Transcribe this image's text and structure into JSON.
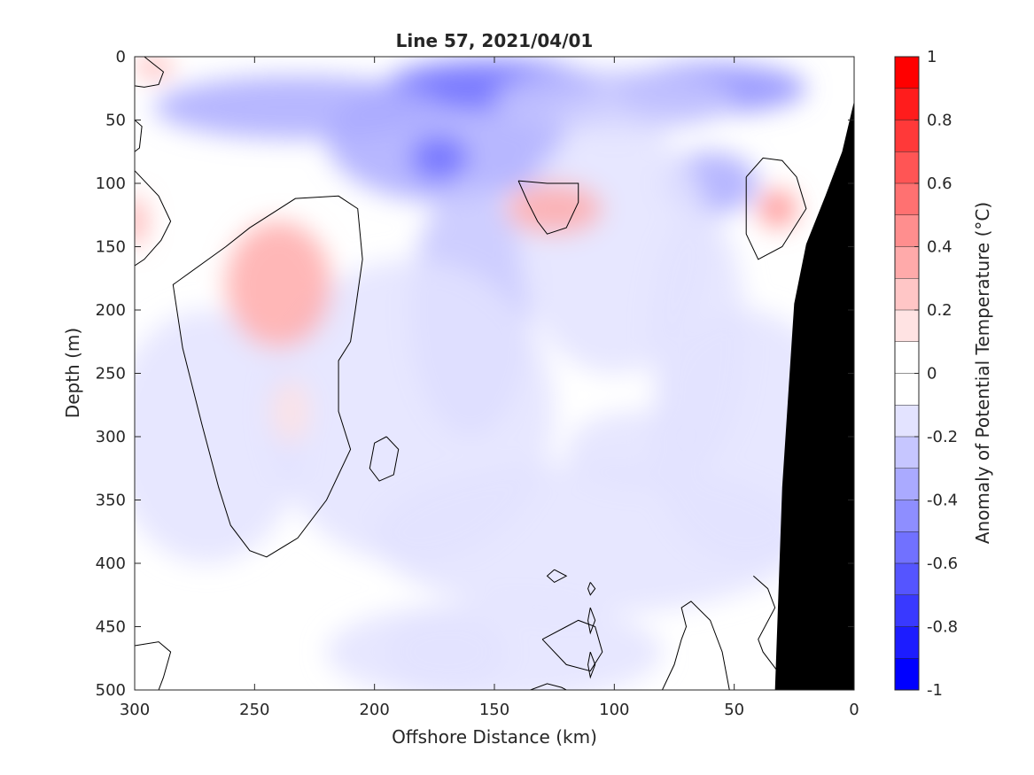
{
  "chart_data": {
    "type": "heatmap",
    "title": "Line 57, 2021/04/01",
    "xlabel": "Offshore Distance (km)",
    "ylabel": "Depth (m)",
    "colorbar_label": "Anomaly of Potential Temperature (°C)",
    "xlim": [
      300,
      0
    ],
    "ylim": [
      500,
      0
    ],
    "x_ticks": [
      "300",
      "250",
      "200",
      "150",
      "100",
      "50",
      "0"
    ],
    "y_ticks": [
      "0",
      "50",
      "100",
      "150",
      "200",
      "250",
      "300",
      "350",
      "400",
      "450",
      "500"
    ],
    "colorbar_ticks": [
      "1",
      "0.8",
      "0.6",
      "0.4",
      "0.2",
      "0",
      "-0.2",
      "-0.4",
      "-0.6",
      "-0.8",
      "-1"
    ],
    "clim": [
      -1,
      1
    ],
    "color_levels": [
      "#ff0000",
      "#ff1c1c",
      "#ff3939",
      "#ff5555",
      "#ff7171",
      "#ff8e8e",
      "#ffaaaa",
      "#ffc6c6",
      "#ffe3e3",
      "#ffffff",
      "#ffffff",
      "#e3e3ff",
      "#c6c6ff",
      "#aaaaff",
      "#8e8eff",
      "#7171ff",
      "#5555ff",
      "#3939ff",
      "#1c1cff",
      "#0000ff"
    ],
    "bathymetry_color": "#000000",
    "bathymetry": [
      {
        "x": 33,
        "depth": 500
      },
      {
        "x": 30,
        "depth": 340
      },
      {
        "x": 25,
        "depth": 195
      },
      {
        "x": 20,
        "depth": 148
      },
      {
        "x": 12,
        "depth": 110
      },
      {
        "x": 5,
        "depth": 75
      },
      {
        "x": 0,
        "depth": 35
      }
    ],
    "anomaly_features": [
      {
        "x": 170,
        "depth": 65,
        "rx": 50,
        "ry": 50,
        "value": -0.3
      },
      {
        "x": 150,
        "depth": 22,
        "rx": 45,
        "ry": 20,
        "value": -0.55
      },
      {
        "x": 173,
        "depth": 80,
        "rx": 12,
        "ry": 18,
        "value": -0.5
      },
      {
        "x": 232,
        "depth": 40,
        "rx": 60,
        "ry": 25,
        "value": -0.4
      },
      {
        "x": 60,
        "depth": 25,
        "rx": 40,
        "ry": 20,
        "value": -0.45
      },
      {
        "x": 100,
        "depth": 35,
        "rx": 50,
        "ry": 25,
        "value": -0.25
      },
      {
        "x": 60,
        "depth": 100,
        "rx": 20,
        "ry": 25,
        "value": -0.3
      },
      {
        "x": 160,
        "depth": 200,
        "rx": 25,
        "ry": 100,
        "value": -0.25
      },
      {
        "x": 100,
        "depth": 150,
        "rx": 40,
        "ry": 100,
        "value": -0.15
      },
      {
        "x": 65,
        "depth": 220,
        "rx": 20,
        "ry": 100,
        "value": -0.2
      },
      {
        "x": 185,
        "depth": 280,
        "rx": 60,
        "ry": 120,
        "value": -0.1
      },
      {
        "x": 110,
        "depth": 380,
        "rx": 90,
        "ry": 60,
        "value": -0.1
      },
      {
        "x": 150,
        "depth": 470,
        "rx": 70,
        "ry": 40,
        "value": -0.12
      },
      {
        "x": 170,
        "depth": 470,
        "rx": 25,
        "ry": 30,
        "value": -0.2
      },
      {
        "x": 45,
        "depth": 300,
        "rx": 40,
        "ry": 100,
        "value": -0.15
      },
      {
        "x": 90,
        "depth": 310,
        "rx": 30,
        "ry": 30,
        "value": -0.15
      },
      {
        "x": 270,
        "depth": 300,
        "rx": 40,
        "ry": 100,
        "value": -0.1
      },
      {
        "x": 240,
        "depth": 180,
        "rx": 22,
        "ry": 50,
        "value": 0.3
      },
      {
        "x": 235,
        "depth": 280,
        "rx": 8,
        "ry": 25,
        "value": 0.12
      },
      {
        "x": 32,
        "depth": 120,
        "rx": 8,
        "ry": 15,
        "value": 0.4
      },
      {
        "x": 292,
        "depth": 8,
        "rx": 8,
        "ry": 8,
        "value": 0.3
      },
      {
        "x": 300,
        "depth": 130,
        "rx": 5,
        "ry": 20,
        "value": 0.3
      },
      {
        "x": 125,
        "depth": 120,
        "rx": 20,
        "ry": 20,
        "value": 0.3
      }
    ],
    "zero_contours": [
      [
        [
          262,
          150
        ],
        [
          252,
          135
        ],
        [
          233,
          112
        ],
        [
          215,
          110
        ],
        [
          207,
          120
        ],
        [
          205,
          160
        ],
        [
          208,
          200
        ],
        [
          210,
          225
        ],
        [
          215,
          240
        ],
        [
          215,
          280
        ],
        [
          210,
          310
        ],
        [
          220,
          350
        ],
        [
          232,
          380
        ],
        [
          245,
          395
        ],
        [
          252,
          390
        ],
        [
          260,
          370
        ],
        [
          265,
          340
        ],
        [
          272,
          290
        ],
        [
          280,
          230
        ],
        [
          284,
          180
        ],
        [
          262,
          150
        ]
      ],
      [
        [
          300,
          90
        ],
        [
          290,
          110
        ],
        [
          285,
          130
        ],
        [
          289,
          145
        ],
        [
          296,
          160
        ],
        [
          300,
          165
        ]
      ],
      [
        [
          296,
          0
        ],
        [
          292,
          6
        ],
        [
          288,
          12
        ],
        [
          290,
          22
        ],
        [
          296,
          24
        ],
        [
          300,
          23
        ]
      ],
      [
        [
          300,
          50
        ],
        [
          297,
          55
        ],
        [
          298,
          72
        ],
        [
          300,
          75
        ]
      ],
      [
        [
          140,
          98
        ],
        [
          128,
          100
        ],
        [
          115,
          100
        ],
        [
          115,
          115
        ],
        [
          120,
          135
        ],
        [
          128,
          140
        ],
        [
          132,
          130
        ],
        [
          136,
          115
        ],
        [
          140,
          98
        ]
      ],
      [
        [
          45,
          95
        ],
        [
          38,
          80
        ],
        [
          30,
          82
        ],
        [
          24,
          95
        ],
        [
          20,
          120
        ],
        [
          30,
          150
        ],
        [
          40,
          160
        ],
        [
          45,
          140
        ],
        [
          45,
          95
        ]
      ],
      [
        [
          195,
          300
        ],
        [
          200,
          305
        ],
        [
          202,
          325
        ],
        [
          198,
          335
        ],
        [
          192,
          330
        ],
        [
          190,
          310
        ],
        [
          195,
          300
        ]
      ],
      [
        [
          125,
          405
        ],
        [
          128,
          410
        ],
        [
          125,
          415
        ],
        [
          120,
          410
        ],
        [
          125,
          405
        ]
      ],
      [
        [
          110,
          415
        ],
        [
          108,
          420
        ],
        [
          110,
          425
        ],
        [
          111,
          420
        ],
        [
          110,
          415
        ]
      ],
      [
        [
          110,
          435
        ],
        [
          108,
          445
        ],
        [
          110,
          455
        ],
        [
          111,
          445
        ],
        [
          110,
          435
        ]
      ],
      [
        [
          110,
          470
        ],
        [
          108,
          480
        ],
        [
          110,
          490
        ],
        [
          111,
          480
        ],
        [
          110,
          470
        ]
      ],
      [
        [
          130,
          460
        ],
        [
          120,
          450
        ],
        [
          115,
          445
        ],
        [
          108,
          450
        ],
        [
          105,
          470
        ],
        [
          110,
          485
        ],
        [
          120,
          480
        ],
        [
          130,
          460
        ]
      ],
      [
        [
          80,
          500
        ],
        [
          75,
          480
        ],
        [
          72,
          460
        ],
        [
          70,
          450
        ],
        [
          72,
          435
        ],
        [
          68,
          430
        ],
        [
          60,
          445
        ],
        [
          55,
          470
        ],
        [
          52,
          500
        ]
      ],
      [
        [
          300,
          465
        ],
        [
          290,
          462
        ],
        [
          285,
          470
        ],
        [
          288,
          490
        ],
        [
          290,
          500
        ]
      ],
      [
        [
          42,
          410
        ],
        [
          36,
          420
        ],
        [
          33,
          435
        ],
        [
          40,
          460
        ],
        [
          38,
          470
        ],
        [
          30,
          490
        ],
        [
          26,
          500
        ]
      ],
      [
        [
          26,
          490
        ],
        [
          24,
          470
        ],
        [
          22,
          450
        ]
      ],
      [
        [
          135,
          500
        ],
        [
          128,
          495
        ],
        [
          122,
          498
        ],
        [
          120,
          500
        ]
      ]
    ]
  }
}
